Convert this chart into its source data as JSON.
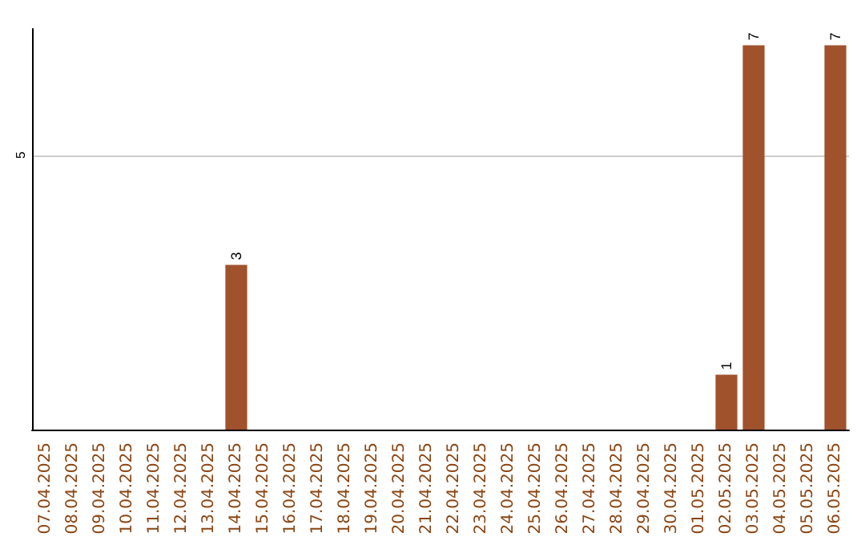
{
  "chart_data": {
    "type": "bar",
    "categories": [
      "07.04.2025",
      "08.04.2025",
      "09.04.2025",
      "10.04.2025",
      "11.04.2025",
      "12.04.2025",
      "13.04.2025",
      "14.04.2025",
      "15.04.2025",
      "16.04.2025",
      "17.04.2025",
      "18.04.2025",
      "19.04.2025",
      "20.04.2025",
      "21.04.2025",
      "22.04.2025",
      "23.04.2025",
      "24.04.2025",
      "25.04.2025",
      "26.04.2025",
      "27.04.2025",
      "28.04.2025",
      "29.04.2025",
      "30.04.2025",
      "01.05.2025",
      "02.05.2025",
      "03.05.2025",
      "04.05.2025",
      "05.05.2025",
      "06.05.2025"
    ],
    "values": [
      0,
      0,
      0,
      0,
      0,
      0,
      0,
      3,
      0,
      0,
      0,
      0,
      0,
      0,
      0,
      0,
      0,
      0,
      0,
      0,
      0,
      0,
      0,
      0,
      0,
      1,
      7,
      0,
      0,
      7
    ],
    "value_labels": [
      null,
      null,
      null,
      null,
      null,
      null,
      null,
      "3",
      null,
      null,
      null,
      null,
      null,
      null,
      null,
      null,
      null,
      null,
      null,
      null,
      null,
      null,
      null,
      null,
      null,
      "1",
      "7",
      null,
      null,
      "7"
    ],
    "color": "#a0522d",
    "ylim": [
      0,
      7.3
    ],
    "yticks": [
      5
    ],
    "grid": "y"
  }
}
